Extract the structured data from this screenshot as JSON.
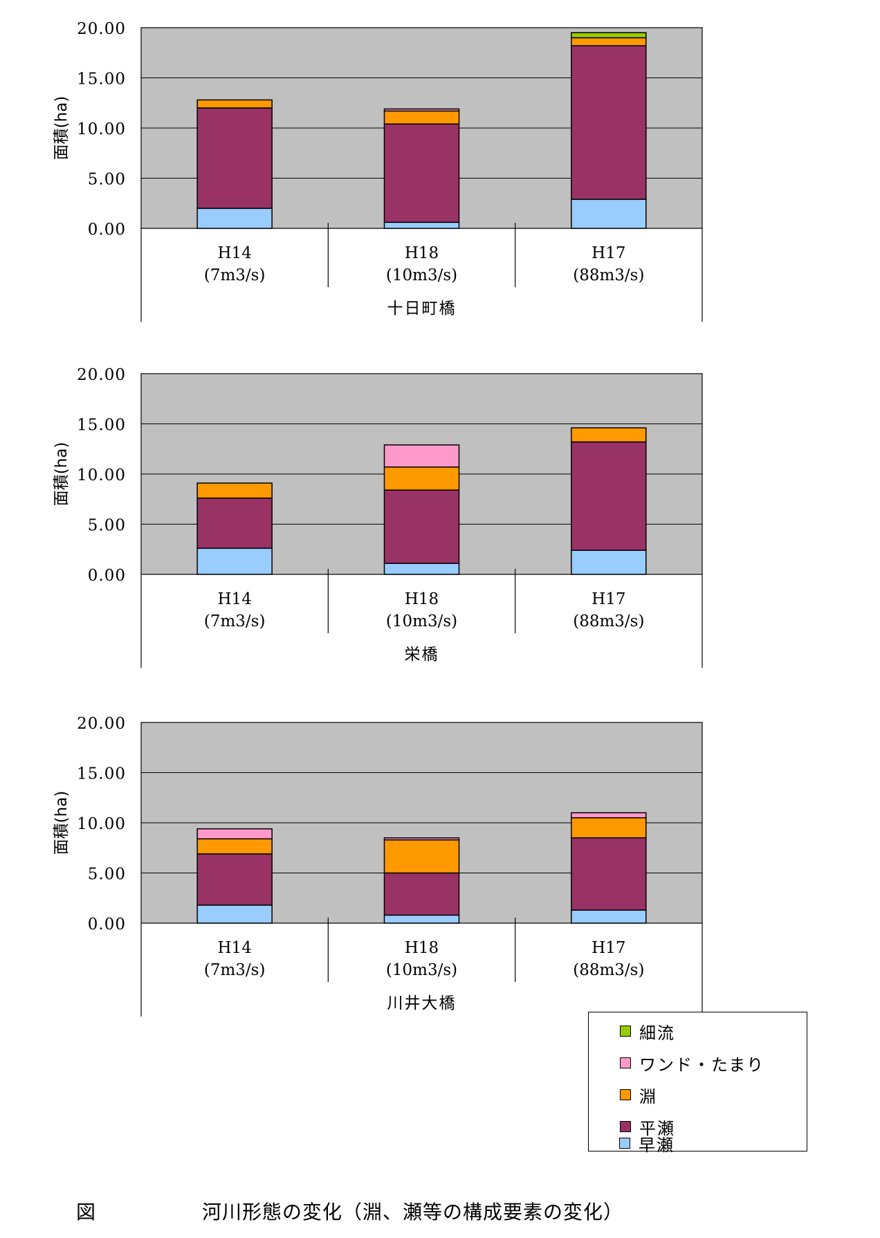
{
  "chart_data": [
    {
      "type": "bar",
      "stacked": true,
      "ylabel": "面積(ha)",
      "ylim": [
        0,
        20
      ],
      "ytick_labels": [
        "0.00",
        "5.00",
        "10.00",
        "15.00",
        "20.00"
      ],
      "grid": true,
      "categories": [
        {
          "year": "H14",
          "flow": "(7m3/s)"
        },
        {
          "year": "H18",
          "flow": "(10m3/s)"
        },
        {
          "year": "H17",
          "flow": "(88m3/s)"
        }
      ],
      "group_label": "十日町橋",
      "series": [
        {
          "name": "早瀬",
          "values": [
            2.0,
            0.6,
            2.9
          ]
        },
        {
          "name": "平瀬",
          "values": [
            10.0,
            9.8,
            15.3
          ]
        },
        {
          "name": "淵",
          "values": [
            0.8,
            1.3,
            0.8
          ]
        },
        {
          "name": "ワンド・たまり",
          "values": [
            0.0,
            0.2,
            0.0
          ]
        },
        {
          "name": "細流",
          "values": [
            0.0,
            0.0,
            0.5
          ]
        }
      ]
    },
    {
      "type": "bar",
      "stacked": true,
      "ylabel": "面積(ha)",
      "ylim": [
        0,
        20
      ],
      "ytick_labels": [
        "0.00",
        "5.00",
        "10.00",
        "15.00",
        "20.00"
      ],
      "grid": true,
      "categories": [
        {
          "year": "H14",
          "flow": "(7m3/s)"
        },
        {
          "year": "H18",
          "flow": "(10m3/s)"
        },
        {
          "year": "H17",
          "flow": "(88m3/s)"
        }
      ],
      "group_label": "栄橋",
      "series": [
        {
          "name": "早瀬",
          "values": [
            2.6,
            1.1,
            2.4
          ]
        },
        {
          "name": "平瀬",
          "values": [
            5.0,
            7.3,
            10.8
          ]
        },
        {
          "name": "淵",
          "values": [
            1.5,
            2.3,
            1.4
          ]
        },
        {
          "name": "ワンド・たまり",
          "values": [
            0.0,
            2.2,
            0.0
          ]
        },
        {
          "name": "細流",
          "values": [
            0.0,
            0.0,
            0.0
          ]
        }
      ]
    },
    {
      "type": "bar",
      "stacked": true,
      "ylabel": "面積(ha)",
      "ylim": [
        0,
        20
      ],
      "ytick_labels": [
        "0.00",
        "5.00",
        "10.00",
        "15.00",
        "20.00"
      ],
      "grid": true,
      "categories": [
        {
          "year": "H14",
          "flow": "(7m3/s)"
        },
        {
          "year": "H18",
          "flow": "(10m3/s)"
        },
        {
          "year": "H17",
          "flow": "(88m3/s)"
        }
      ],
      "group_label": "川井大橋",
      "series": [
        {
          "name": "早瀬",
          "values": [
            1.8,
            0.8,
            1.3
          ]
        },
        {
          "name": "平瀬",
          "values": [
            5.1,
            4.2,
            7.2
          ]
        },
        {
          "name": "淵",
          "values": [
            1.5,
            3.3,
            2.0
          ]
        },
        {
          "name": "ワンド・たまり",
          "values": [
            1.0,
            0.2,
            0.5
          ]
        },
        {
          "name": "細流",
          "values": [
            0.0,
            0.0,
            0.0
          ]
        }
      ]
    }
  ],
  "series_colors": {
    "早瀬": "#99ccff",
    "平瀬": "#993366",
    "淵": "#ff9900",
    "ワンド・たまり": "#ff99cc",
    "細流": "#99cc00"
  },
  "plot_background": "#c0c0c0",
  "legend": {
    "items": [
      "細流",
      "ワンド・たまり",
      "淵",
      "平瀬",
      "早瀬"
    ]
  },
  "caption": {
    "prefix": "図",
    "text": "河川形態の変化（淵、瀬等の構成要素の変化）"
  }
}
